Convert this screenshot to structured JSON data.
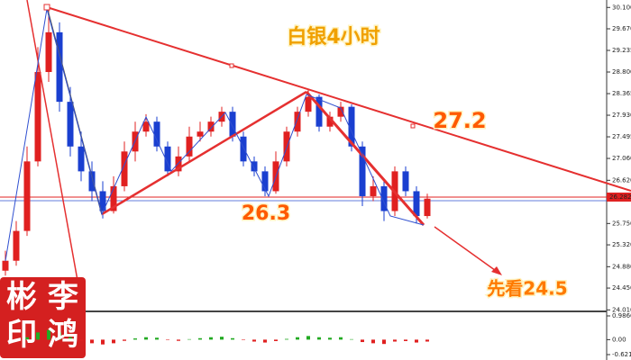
{
  "chart_data": {
    "type": "candlestick",
    "title": "白银4小时",
    "open": [
      24.8,
      25.0,
      25.6,
      27.0,
      28.8,
      29.6,
      28.2,
      27.3,
      26.8,
      26.4,
      26.0,
      26.5,
      27.2,
      27.6,
      27.8,
      27.3,
      26.8,
      27.1,
      27.5,
      27.6,
      27.8,
      28.0,
      27.5,
      27.0,
      26.8,
      26.4,
      27.0,
      27.6,
      28.0,
      28.3,
      27.7,
      27.9,
      28.1,
      27.3,
      26.3,
      26.5,
      26.0,
      26.8,
      26.4,
      25.9
    ],
    "high": [
      25.2,
      25.8,
      27.3,
      29.3,
      30.1,
      29.8,
      28.5,
      27.6,
      27.0,
      26.6,
      26.7,
      27.4,
      27.8,
      27.95,
      27.9,
      27.4,
      27.3,
      27.7,
      27.8,
      27.9,
      28.1,
      28.1,
      27.6,
      27.1,
      26.9,
      27.2,
      27.7,
      28.1,
      28.45,
      28.35,
      28.0,
      28.2,
      28.15,
      27.4,
      26.7,
      26.6,
      26.9,
      26.9,
      26.5,
      26.35
    ],
    "low": [
      24.7,
      24.9,
      25.5,
      26.9,
      28.6,
      28.0,
      27.1,
      26.6,
      26.2,
      25.85,
      25.95,
      26.4,
      27.0,
      27.5,
      27.2,
      26.7,
      26.7,
      27.0,
      27.4,
      27.5,
      27.7,
      27.4,
      26.9,
      26.7,
      26.3,
      26.35,
      26.9,
      27.5,
      27.9,
      27.6,
      27.6,
      27.8,
      27.2,
      26.1,
      26.2,
      25.8,
      25.9,
      26.3,
      25.75,
      25.85
    ],
    "close": [
      25.0,
      25.6,
      27.0,
      28.8,
      29.6,
      28.2,
      27.3,
      26.8,
      26.4,
      26.0,
      26.5,
      27.2,
      27.6,
      27.8,
      27.3,
      26.8,
      27.1,
      27.5,
      27.6,
      27.8,
      28.0,
      27.5,
      27.0,
      26.8,
      26.4,
      27.0,
      27.6,
      28.0,
      28.3,
      27.7,
      27.9,
      28.1,
      27.3,
      26.3,
      26.5,
      26.0,
      26.8,
      26.4,
      25.9,
      26.25
    ],
    "up_color": "#e02020",
    "down_color": "#1a3fd0",
    "ylim": [
      23.98,
      30.25
    ],
    "yticks": [
      {
        "value": 30.1,
        "label": "30.100"
      },
      {
        "value": 29.67,
        "label": "29.670"
      },
      29.235,
      {
        "value": 28.8,
        "label": "28.800"
      },
      28.365,
      {
        "value": 27.93,
        "label": "27.930"
      },
      27.495,
      {
        "value": 27.06,
        "label": "27.060"
      },
      {
        "value": 26.62,
        "label": "26.620"
      },
      {
        "value": 25.75,
        "label": "25.750"
      },
      {
        "value": 25.32,
        "label": "25.320"
      },
      {
        "value": 24.88,
        "label": "24.880"
      },
      {
        "value": 24.45,
        "label": "24.450"
      },
      {
        "value": 24.01,
        "label": "24.010"
      }
    ],
    "current_price": 26.282,
    "annotations": [
      "27.2",
      "26.3",
      "先看24.5"
    ],
    "watermark": [
      "彬",
      "李",
      "印",
      "鸿"
    ],
    "indicator": {
      "type": "bar",
      "values": [
        0,
        0,
        0.1,
        0.3,
        0.4,
        0.3,
        0.1,
        -0.05,
        -0.15,
        -0.2,
        -0.15,
        -0.05,
        0.05,
        0.1,
        0.08,
        -0.02,
        -0.05,
        0.02,
        0.06,
        0.1,
        0.12,
        0.06,
        -0.02,
        -0.08,
        -0.12,
        -0.06,
        0.03,
        0.1,
        0.15,
        0.1,
        0.08,
        0.1,
        0.02,
        -0.1,
        -0.15,
        -0.18,
        -0.08,
        -0.06,
        -0.12,
        -0.08
      ],
      "up_color": "#22aa22",
      "down_color": "#e02020",
      "ylim": [
        -0.846,
        1.136
      ],
      "yticks": [
        0.9866,
        {
          "value": 0,
          "label": "0.00"
        },
        -0.6212
      ]
    }
  }
}
